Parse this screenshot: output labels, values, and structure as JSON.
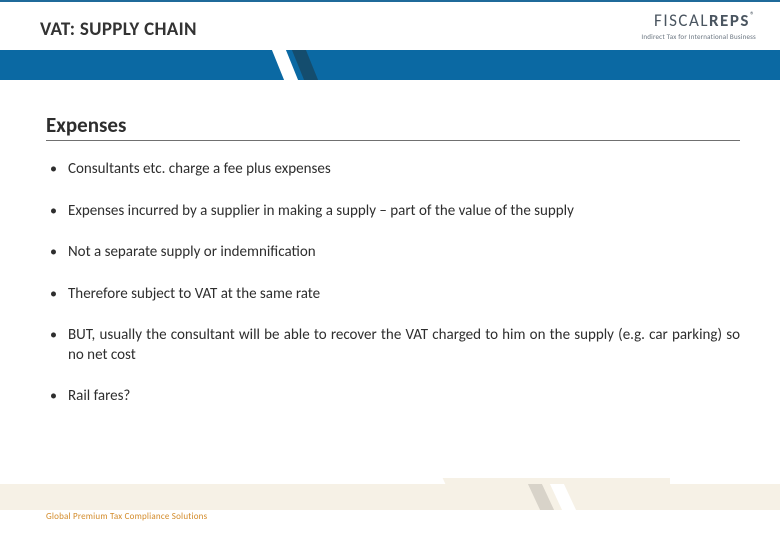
{
  "colors": {
    "brand_blue": "#0b69a3",
    "brand_blue_dark": "#144d6e",
    "text": "#2e2e2e",
    "logo_text": "#4a5560",
    "footer_bg": "#f6f1e6",
    "footer_accent": "#d8d3c9",
    "footer_text": "#d38b2a",
    "underline": "#707070"
  },
  "header": {
    "title": "VAT: SUPPLY CHAIN",
    "logo_thin": "FISCAL",
    "logo_bold": "REPS",
    "logo_reg": "®",
    "logo_tagline": "Indirect Tax for International Business"
  },
  "content": {
    "section_title": "Expenses",
    "bullets": [
      "Consultants etc. charge a fee plus expenses",
      "Expenses incurred by a supplier in making a supply – part of the value of the supply",
      "Not a separate supply or indemnification",
      "Therefore subject to VAT at the same rate",
      "BUT, usually the consultant will be able to recover the VAT charged to him on the supply (e.g. car parking) so no net cost",
      "Rail fares?"
    ]
  },
  "footer": {
    "tagline": "Global Premium Tax Compliance Solutions"
  }
}
